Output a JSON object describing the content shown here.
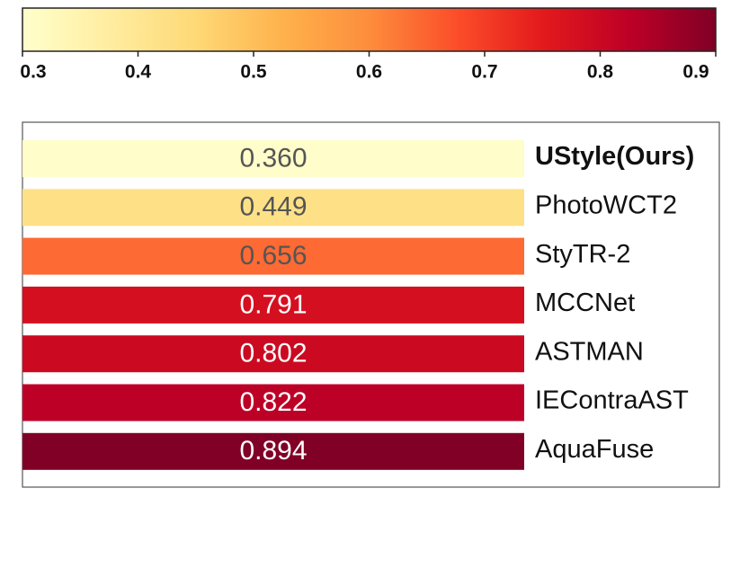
{
  "chart_data": {
    "type": "heatmap",
    "categories": [
      "UStyle(Ours)",
      "PhotoWCT2",
      "StyTR-2",
      "MCCNet",
      "ASTMAN",
      "IEContraAST",
      "AquaFuse"
    ],
    "values": [
      0.36,
      0.449,
      0.656,
      0.791,
      0.802,
      0.822,
      0.894
    ],
    "value_labels": [
      "0.360",
      "0.449",
      "0.656",
      "0.791",
      "0.802",
      "0.822",
      "0.894"
    ],
    "colors": [
      "#fffdc9",
      "#fee187",
      "#fd6a33",
      "#d41020",
      "#cb0a22",
      "#bd0026",
      "#800026"
    ],
    "colormap": [
      "#ffffcc",
      "#ffeda0",
      "#fed976",
      "#feb24c",
      "#fd8d3c",
      "#fc4e2a",
      "#e31a1c",
      "#bd0026",
      "#800026"
    ],
    "clim": [
      0.3,
      0.9
    ],
    "cticks": [
      0.3,
      0.4,
      0.5,
      0.6,
      0.7,
      0.8,
      0.9
    ]
  }
}
